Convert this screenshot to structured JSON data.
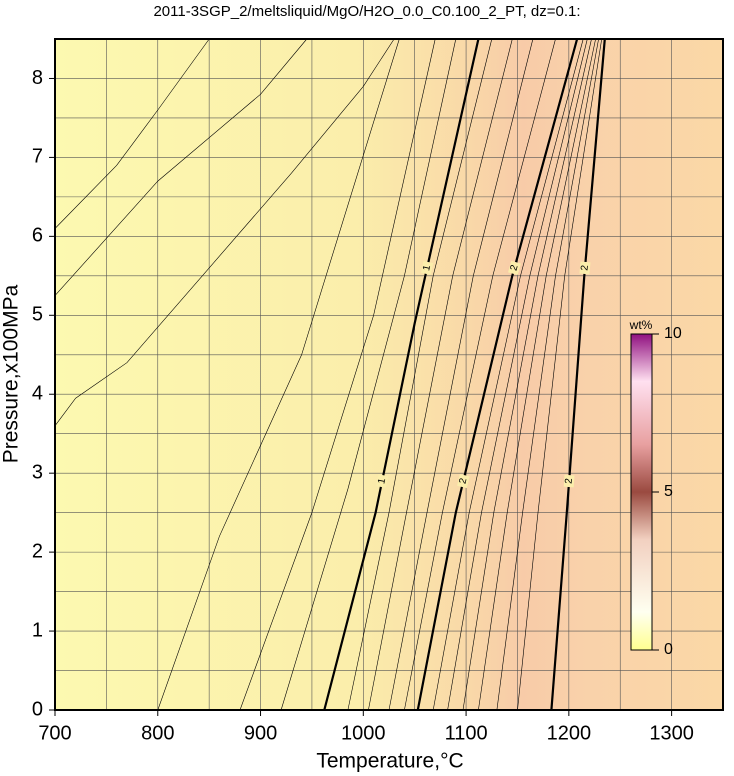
{
  "chart_data": {
    "type": "contour",
    "title": "2011-3SGP_2/meltsliquid/MgO/H2O_0.0_C0.100_2_PT, dz=0.1:",
    "xlabel": "Temperature,°C",
    "ylabel": "Pressure,x100MPa",
    "xlim": [
      700,
      1350
    ],
    "ylim": [
      0,
      8.5
    ],
    "xticks": [
      700,
      800,
      900,
      1000,
      1100,
      1200,
      1300
    ],
    "yticks": [
      0,
      1,
      2,
      3,
      4,
      5,
      6,
      7,
      8
    ],
    "xgrid": [
      750,
      800,
      850,
      900,
      950,
      1000,
      1050,
      1100,
      1150,
      1200,
      1250,
      1300
    ],
    "ygrid": [
      0.5,
      1,
      1.5,
      2,
      2.5,
      3,
      3.5,
      4,
      4.5,
      5,
      5.5,
      6,
      6.5,
      7,
      7.5,
      8
    ],
    "contours": [
      {
        "x": [
          700,
          760,
          800,
          850
        ],
        "y": [
          6.1,
          6.9,
          7.6,
          8.5
        ]
      },
      {
        "x": [
          700,
          800,
          900,
          945
        ],
        "y": [
          5.25,
          6.7,
          7.8,
          8.5
        ]
      },
      {
        "x": [
          700,
          720,
          770,
          850,
          930,
          1000,
          1030
        ],
        "y": [
          3.6,
          3.95,
          4.4,
          5.6,
          6.8,
          7.9,
          8.5
        ]
      },
      {
        "x": [
          800,
          860,
          940,
          1035
        ],
        "y": [
          0,
          2.2,
          4.5,
          8.5
        ]
      },
      {
        "x": [
          880,
          950,
          1010,
          1070
        ],
        "y": [
          0,
          2.5,
          5,
          8.5
        ]
      },
      {
        "x": [
          920,
          985,
          1040,
          1090
        ],
        "y": [
          0,
          2.8,
          5.5,
          8.5
        ]
      },
      {
        "x": [
          962,
          1012,
          1050,
          1112
        ],
        "y": [
          0,
          2.5,
          4.9,
          8.5
        ],
        "label": 1
      },
      {
        "x": [
          985,
          1025,
          1068,
          1125
        ],
        "y": [
          0,
          2.5,
          5.5,
          8.5
        ]
      },
      {
        "x": [
          1005,
          1042,
          1087,
          1145
        ],
        "y": [
          0,
          2.5,
          5.5,
          8.5
        ]
      },
      {
        "x": [
          1025,
          1062,
          1107,
          1165
        ],
        "y": [
          0,
          2.5,
          5.5,
          8.5
        ]
      },
      {
        "x": [
          1040,
          1077,
          1126,
          1187
        ],
        "y": [
          0,
          2.5,
          5.5,
          8.5
        ]
      },
      {
        "x": [
          1053,
          1090,
          1145,
          1208
        ],
        "y": [
          0,
          2.5,
          5.5,
          8.5
        ],
        "label": 2
      },
      {
        "x": [
          1068,
          1103,
          1153,
          1214
        ],
        "y": [
          0,
          2.5,
          5.5,
          8.5
        ]
      },
      {
        "x": [
          1082,
          1115,
          1162,
          1218
        ],
        "y": [
          0,
          2.5,
          5.5,
          8.5
        ]
      },
      {
        "x": [
          1097,
          1127,
          1170,
          1222
        ],
        "y": [
          0,
          2.5,
          5.5,
          8.5
        ]
      },
      {
        "x": [
          1112,
          1140,
          1178,
          1226
        ],
        "y": [
          0,
          2.5,
          5.5,
          8.5
        ]
      },
      {
        "x": [
          1130,
          1155,
          1187,
          1229
        ],
        "y": [
          0,
          2.5,
          5.5,
          8.5
        ]
      },
      {
        "x": [
          1150,
          1170,
          1196,
          1232
        ],
        "y": [
          0,
          2.5,
          5.5,
          8.5
        ]
      },
      {
        "x": [
          1183,
          1198,
          1215,
          1235
        ],
        "y": [
          0,
          2.5,
          5.5,
          8.5
        ],
        "label": 2
      }
    ],
    "colorbar": {
      "title": "wt%",
      "lim": [
        0,
        10
      ],
      "ticks": [
        0,
        5,
        10
      ]
    }
  }
}
